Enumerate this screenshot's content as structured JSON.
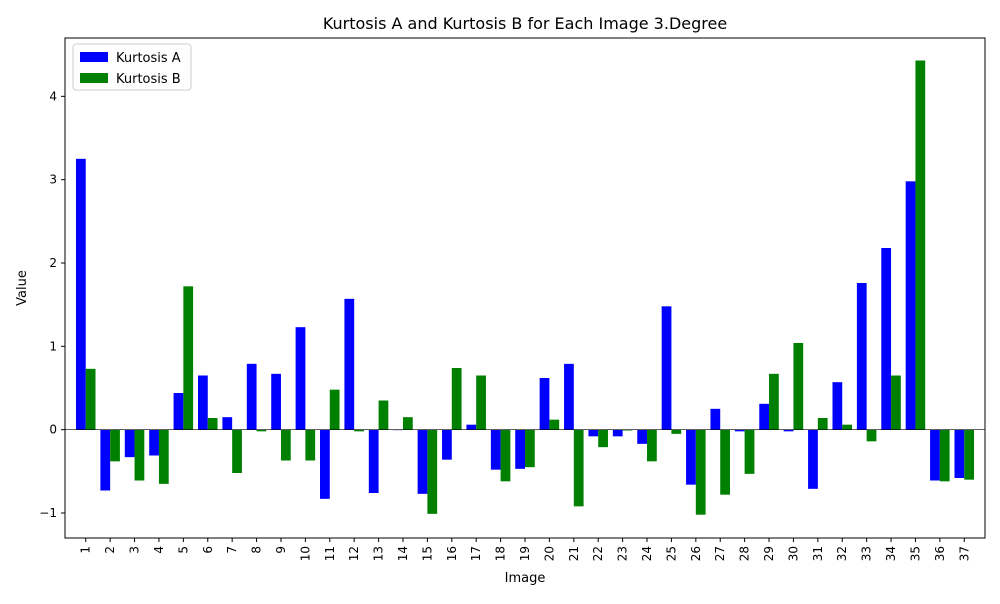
{
  "chart_data": {
    "type": "bar",
    "title": "Kurtosis A and Kurtosis B for Each Image 3.Degree",
    "xlabel": "Image",
    "ylabel": "Value",
    "ylim": [
      -1.3,
      4.7
    ],
    "yticks": [
      -1,
      0,
      1,
      2,
      3,
      4
    ],
    "ytick_labels": [
      "−1",
      "0",
      "1",
      "2",
      "3",
      "4"
    ],
    "grid": false,
    "legend_position": "top-left",
    "categories": [
      "1",
      "2",
      "3",
      "4",
      "5",
      "6",
      "7",
      "8",
      "9",
      "10",
      "11",
      "12",
      "13",
      "14",
      "15",
      "16",
      "17",
      "18",
      "19",
      "20",
      "21",
      "22",
      "23",
      "24",
      "25",
      "26",
      "27",
      "28",
      "29",
      "30",
      "31",
      "32",
      "33",
      "34",
      "35",
      "36",
      "37"
    ],
    "series": [
      {
        "name": "Kurtosis A",
        "color": "#0000ff",
        "values": [
          3.25,
          -0.73,
          -0.33,
          -0.31,
          0.44,
          0.65,
          0.15,
          0.79,
          0.67,
          1.23,
          -0.83,
          1.57,
          -0.76,
          0.0,
          -0.77,
          -0.36,
          0.06,
          -0.48,
          -0.47,
          0.62,
          0.79,
          -0.08,
          -0.08,
          -0.17,
          1.48,
          -0.66,
          0.25,
          -0.02,
          0.31,
          -0.02,
          -0.71,
          0.57,
          1.76,
          2.18,
          2.98,
          -0.61,
          -0.58
        ]
      },
      {
        "name": "Kurtosis B",
        "color": "#008000",
        "values": [
          0.73,
          -0.38,
          -0.61,
          -0.65,
          1.72,
          0.14,
          -0.52,
          -0.02,
          -0.37,
          -0.37,
          0.48,
          -0.02,
          0.35,
          0.15,
          -1.01,
          0.74,
          0.65,
          -0.62,
          -0.45,
          0.12,
          -0.92,
          -0.21,
          -0.01,
          -0.38,
          -0.05,
          -1.02,
          -0.78,
          -0.53,
          0.67,
          1.04,
          0.14,
          0.06,
          -0.14,
          0.65,
          4.43,
          -0.62,
          -0.6
        ]
      }
    ]
  }
}
